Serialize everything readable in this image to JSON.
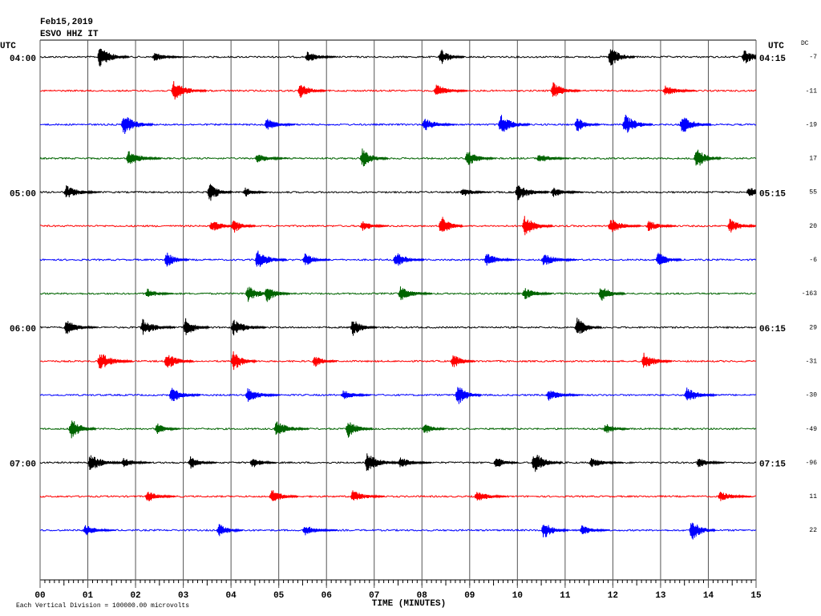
{
  "chart_data": {
    "type": "helicorder",
    "title": "Feb15,2019",
    "subtitle": "ESVO HHZ IT",
    "utc_label": "UTC",
    "dc_label": "DC",
    "xlabel": "TIME (MINUTES)",
    "note": "Each Vertical Division = 100000.00 microvolts",
    "xlim": [
      0,
      15
    ],
    "xticks": [
      {
        "value": 0,
        "label": "00"
      },
      {
        "value": 1,
        "label": "01"
      },
      {
        "value": 2,
        "label": "02"
      },
      {
        "value": 3,
        "label": "03"
      },
      {
        "value": 4,
        "label": "04"
      },
      {
        "value": 5,
        "label": "05"
      },
      {
        "value": 6,
        "label": "06"
      },
      {
        "value": 7,
        "label": "07"
      },
      {
        "value": 8,
        "label": "08"
      },
      {
        "value": 9,
        "label": "09"
      },
      {
        "value": 10,
        "label": "10"
      },
      {
        "value": 11,
        "label": "11"
      },
      {
        "value": 12,
        "label": "12"
      },
      {
        "value": 13,
        "label": "13"
      },
      {
        "value": 14,
        "label": "14"
      },
      {
        "value": 15,
        "label": "15"
      }
    ],
    "grid": true,
    "traces": [
      {
        "color": "#000000",
        "dc": -7,
        "left_label": "04:00",
        "right_label": "04:15",
        "events": [
          1.2,
          2.35,
          5.55,
          8.35,
          11.9,
          14.7
        ]
      },
      {
        "color": "#ff0000",
        "dc": -11,
        "events": [
          2.75,
          5.4,
          8.25,
          10.7,
          13.05
        ]
      },
      {
        "color": "#0000ff",
        "dc": -19,
        "events": [
          1.7,
          4.7,
          8.0,
          9.6,
          11.2,
          12.2,
          13.4
        ]
      },
      {
        "color": "#006400",
        "dc": 17,
        "events": [
          1.8,
          4.5,
          6.7,
          8.9,
          10.4,
          13.7
        ]
      },
      {
        "color": "#000000",
        "dc": 55,
        "left_label": "05:00",
        "right_label": "05:15",
        "events": [
          0.5,
          3.5,
          4.25,
          8.8,
          9.95,
          10.7,
          14.8
        ]
      },
      {
        "color": "#ff0000",
        "dc": 20,
        "events": [
          3.55,
          4.0,
          6.7,
          8.35,
          10.1,
          11.9,
          12.7,
          14.4
        ]
      },
      {
        "color": "#0000ff",
        "dc": -6,
        "events": [
          2.6,
          4.5,
          5.5,
          7.4,
          9.3,
          10.5,
          12.9
        ]
      },
      {
        "color": "#006400",
        "dc": -163,
        "events": [
          2.2,
          4.3,
          4.7,
          7.5,
          10.1,
          11.7
        ]
      },
      {
        "color": "#000000",
        "dc": 29,
        "left_label": "06:00",
        "right_label": "06:15",
        "events": [
          0.5,
          2.1,
          3.0,
          4.0,
          6.5,
          11.2
        ]
      },
      {
        "color": "#ff0000",
        "dc": -31,
        "events": [
          1.2,
          2.6,
          4.0,
          5.7,
          8.6,
          12.6
        ]
      },
      {
        "color": "#0000ff",
        "dc": -30,
        "events": [
          2.7,
          4.3,
          6.3,
          8.7,
          10.6,
          13.5
        ]
      },
      {
        "color": "#006400",
        "dc": -49,
        "events": [
          0.6,
          2.4,
          4.9,
          6.4,
          8.0,
          11.8
        ]
      },
      {
        "color": "#000000",
        "dc": -96,
        "left_label": "07:00",
        "right_label": "07:15",
        "events": [
          1.0,
          1.7,
          3.1,
          4.4,
          6.8,
          7.5,
          9.5,
          10.3,
          11.5,
          13.75
        ]
      },
      {
        "color": "#ff0000",
        "dc": 11,
        "events": [
          2.2,
          4.8,
          6.5,
          9.1,
          14.2
        ]
      },
      {
        "color": "#0000ff",
        "dc": 22,
        "events": [
          0.9,
          3.7,
          5.5,
          10.5,
          11.3,
          13.6
        ]
      }
    ]
  }
}
